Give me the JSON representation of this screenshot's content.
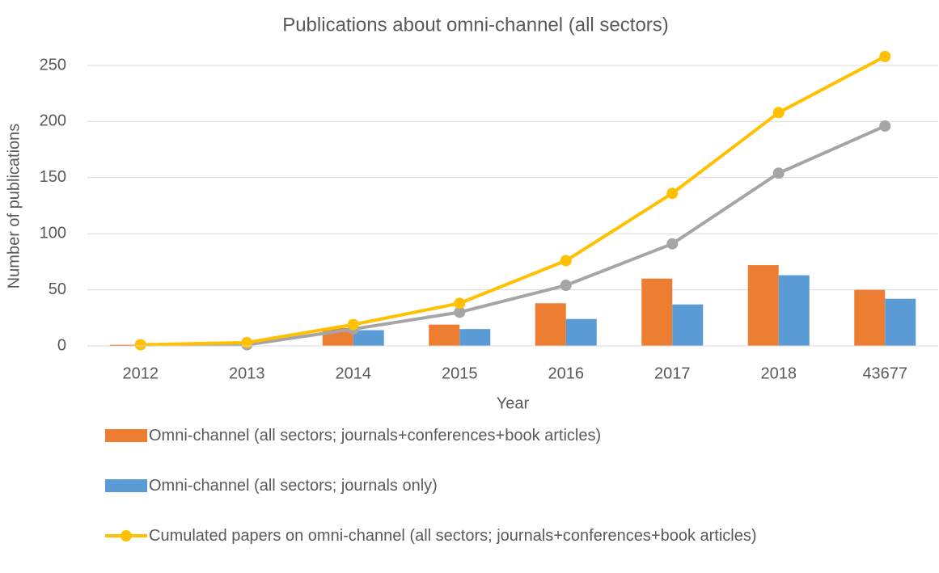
{
  "chart_data": {
    "type": "bar",
    "title": "Publications about omni-channel (all sectors)",
    "x_label": "Year",
    "y_label": "Number of publications",
    "categories": [
      "2012",
      "2013",
      "2014",
      "2015",
      "2016",
      "2017",
      "2018",
      "43677"
    ],
    "series": [
      {
        "name": "Omni-channel (all sectors; journals+conferences+book articles)",
        "type": "bar",
        "color": "#ed7d31",
        "values": [
          1,
          2,
          16,
          19,
          38,
          60,
          72,
          50
        ]
      },
      {
        "name": "Omni-channel (all sectors; journals only)",
        "type": "bar",
        "color": "#5b9bd5",
        "values": [
          1,
          0,
          14,
          15,
          24,
          37,
          63,
          42
        ]
      },
      {
        "type": "line",
        "color": "#a5a5a5",
        "values": [
          1,
          1,
          15,
          30,
          54,
          91,
          154,
          196
        ]
      },
      {
        "name": "Cumulated papers on omni-channel (all sectors; journals+conferences+book articles)",
        "type": "line",
        "color": "#ffc000",
        "values": [
          1,
          3,
          19,
          38,
          76,
          136,
          208,
          258
        ]
      }
    ],
    "ylim": [
      0,
      250
    ],
    "yticks": [
      0,
      50,
      100,
      150,
      200,
      250
    ],
    "grid": true
  }
}
